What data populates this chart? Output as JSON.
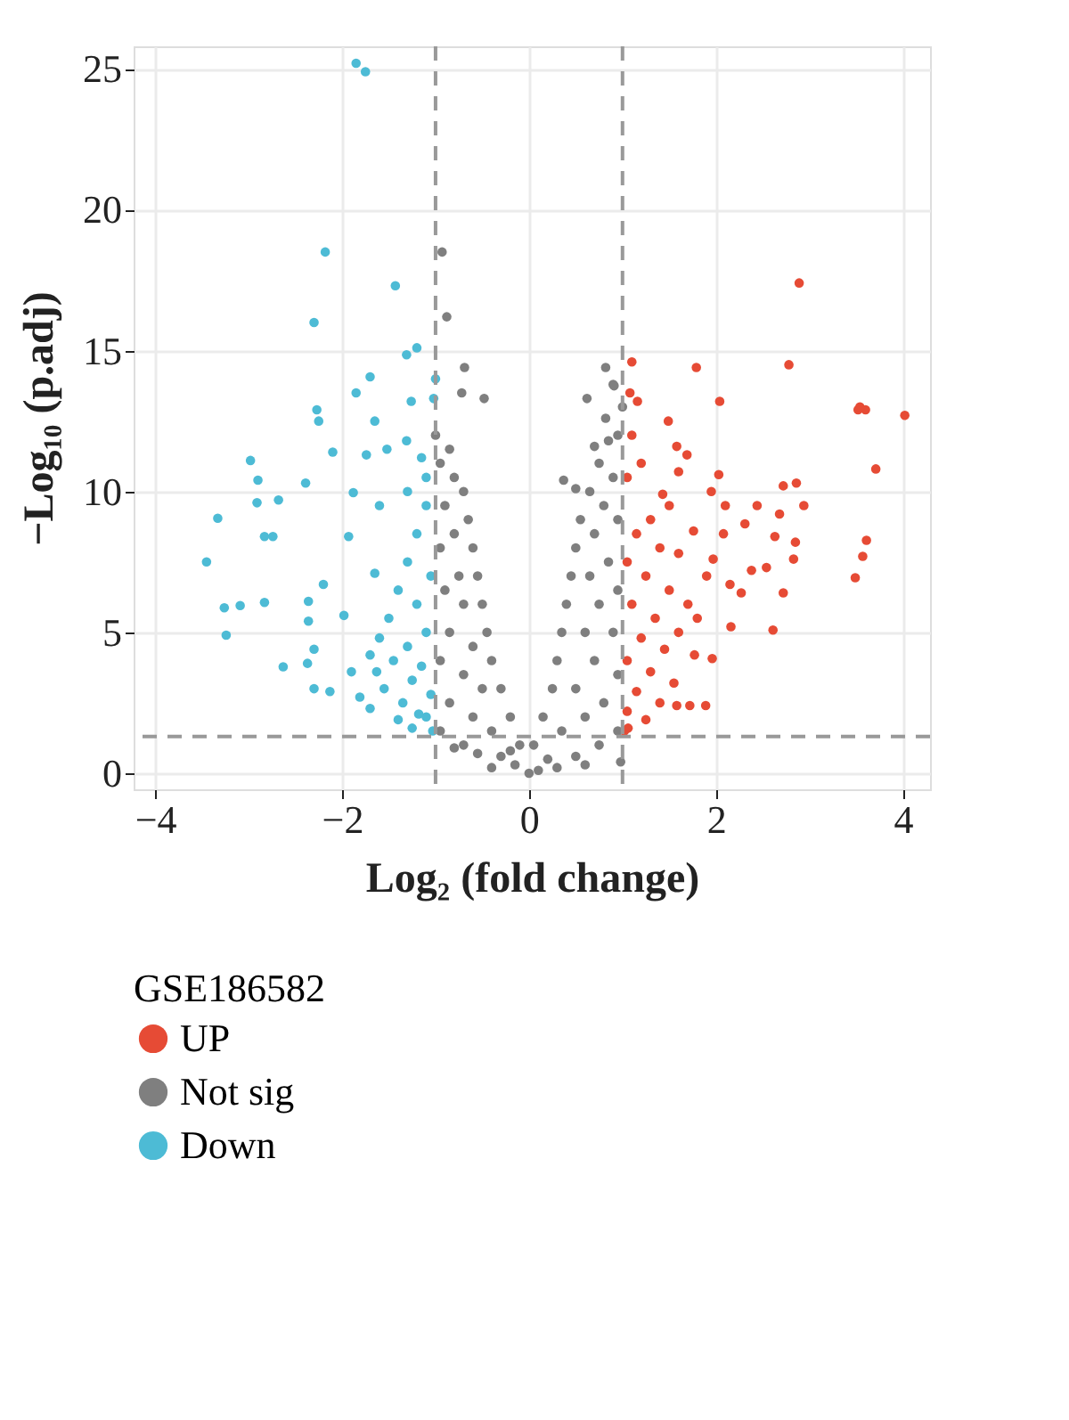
{
  "chart_data": {
    "type": "scatter",
    "xlabel": "Log₂ (fold change)",
    "ylabel": "−Log₁₀ (p.adj)",
    "legend_title": "GSE186582",
    "xlim": [
      -4.23,
      4.29
    ],
    "ylim": [
      -0.57,
      25.8
    ],
    "xticks": [
      -4,
      -2,
      0,
      2,
      4
    ],
    "yticks": [
      0,
      5,
      10,
      15,
      20,
      25
    ],
    "grid": true,
    "legend": "bottom",
    "marker": "circle",
    "ref_lines": [
      {
        "axis": "x",
        "value": -1,
        "color": "#999999",
        "line_style": "dashed"
      },
      {
        "axis": "x",
        "value": 1,
        "color": "#999999",
        "line_style": "dashed"
      },
      {
        "axis": "y",
        "value": 1.3,
        "color": "#999999",
        "line_style": "dashed"
      }
    ],
    "series": [
      {
        "name": "UP",
        "color": "#e64b35",
        "x": [
          2.89,
          1.1,
          1.79,
          2.78,
          1.08,
          1.16,
          2.04,
          3.6,
          3.52,
          3.54,
          4.02,
          1.49,
          1.58,
          1.69,
          3.71,
          2.03,
          1.6,
          2.72,
          2.86,
          2.94,
          2.44,
          2.68,
          1.95,
          2.1,
          1.43,
          1.76,
          2.08,
          2.31,
          2.63,
          2.85,
          3.61,
          3.57,
          3.49,
          2.83,
          2.54,
          2.38,
          1.97,
          2.15,
          2.27,
          2.72,
          2.61,
          2.16,
          1.96,
          1.77,
          1.58,
          1.72,
          1.89,
          1.06,
          1.1,
          1.2,
          1.05,
          1.3,
          1.15,
          1.4,
          1.05,
          1.25,
          1.5,
          1.1,
          1.35,
          1.6,
          1.2,
          1.45,
          1.05,
          1.3,
          1.55,
          1.15,
          1.4,
          1.05,
          1.25,
          1.02,
          1.7,
          1.8,
          1.6,
          1.9,
          1.5
        ],
        "values": [
          17.4,
          14.6,
          14.4,
          14.5,
          13.5,
          13.2,
          13.2,
          12.9,
          12.9,
          13.0,
          12.7,
          12.5,
          11.6,
          11.3,
          10.8,
          10.6,
          10.7,
          10.2,
          10.3,
          9.5,
          9.5,
          9.2,
          10.0,
          9.5,
          9.9,
          8.6,
          8.5,
          8.85,
          8.4,
          8.2,
          8.27,
          7.7,
          6.94,
          7.6,
          7.3,
          7.2,
          7.6,
          6.7,
          6.4,
          6.4,
          5.08,
          5.2,
          4.07,
          4.2,
          2.4,
          2.4,
          2.4,
          1.6,
          12,
          11,
          10.5,
          9,
          8.5,
          8,
          7.5,
          7,
          6.5,
          6,
          5.5,
          5,
          4.8,
          4.4,
          4,
          3.6,
          3.2,
          2.9,
          2.5,
          2.2,
          1.9,
          1.5,
          6,
          5.5,
          7.8,
          7,
          9.5
        ]
      },
      {
        "name": "Not sig",
        "color": "#7f7f7f",
        "x": [
          -0.93,
          -0.88,
          -0.69,
          -0.72,
          -0.48,
          0.82,
          0.91,
          0.62,
          0.9,
          0.82,
          0.7,
          0.37,
          0.5,
          -1,
          -0.95,
          -0.85,
          -0.8,
          -0.7,
          -0.9,
          -0.65,
          -0.8,
          -0.6,
          -0.95,
          -0.55,
          -0.75,
          -0.9,
          -0.5,
          -0.7,
          -0.45,
          -0.85,
          -0.6,
          -0.4,
          -0.95,
          -0.3,
          -0.7,
          -0.5,
          -0.85,
          -0.2,
          -0.6,
          -0.95,
          -0.4,
          -0.1,
          -0.7,
          -0.3,
          -0.55,
          -0.15,
          0,
          -0.4,
          0.1,
          0.3,
          -0.8,
          -0.2,
          1,
          0.95,
          0.85,
          0.75,
          0.9,
          0.65,
          0.8,
          0.55,
          0.95,
          0.7,
          0.5,
          0.85,
          0.45,
          0.65,
          0.95,
          0.4,
          0.75,
          0.35,
          0.6,
          0.9,
          0.3,
          0.7,
          0.95,
          0.25,
          0.5,
          0.8,
          0.15,
          0.6,
          0.95,
          0.35,
          0.05,
          0.75,
          0.5,
          0.2,
          0.6,
          0.98
        ],
        "values": [
          18.5,
          16.2,
          14.4,
          13.5,
          13.3,
          14.4,
          13.75,
          13.3,
          13.8,
          12.6,
          11.6,
          10.4,
          10.1,
          12,
          11,
          11.5,
          10.5,
          10,
          9.5,
          9,
          8.5,
          8,
          8,
          7,
          7,
          6.5,
          6,
          6,
          5,
          5,
          4.5,
          4,
          4,
          3,
          3.5,
          3,
          2.5,
          2,
          2,
          1.5,
          1.5,
          1,
          1,
          0.6,
          0.7,
          0.3,
          0,
          0.2,
          0.1,
          0.2,
          0.9,
          0.8,
          13,
          12,
          11.8,
          11,
          10.5,
          10,
          9.5,
          9,
          9,
          8.5,
          8,
          7.5,
          7,
          7,
          6.5,
          6,
          6,
          5,
          5,
          5,
          4,
          4,
          3.5,
          3,
          3,
          2.5,
          2,
          2,
          1.5,
          1.5,
          1,
          1,
          0.6,
          0.5,
          0.3,
          0.4
        ]
      },
      {
        "name": "Down",
        "color": "#4dbbd5",
        "x": [
          -1.85,
          -1.75,
          -2.18,
          -1.43,
          -2.3,
          -1.2,
          -1.31,
          -1.0,
          -1.7,
          -1.85,
          -1.26,
          -2.27,
          -2.25,
          -1.65,
          -1.31,
          -2.98,
          -2.1,
          -1.74,
          -1.52,
          -2.9,
          -2.39,
          -2.91,
          -2.68,
          -3.33,
          -1.88,
          -2.83,
          -2.74,
          -3.45,
          -1.93,
          -3.26,
          -3.09,
          -3.24,
          -2.83,
          -2.63,
          -2.2,
          -2.36,
          -2.36,
          -2.3,
          -2.37,
          -2.3,
          -2.13,
          -1.98,
          -1.65,
          -1.81,
          -1.63,
          -1.4,
          -1.18,
          -1.1,
          -1.2,
          -1.3,
          -1.05,
          -1.4,
          -1.2,
          -1.5,
          -1.1,
          -1.6,
          -1.3,
          -1.7,
          -1.45,
          -1.15,
          -1.9,
          -1.25,
          -1.55,
          -1.05,
          -1.35,
          -1.7,
          -1.1,
          -1.25,
          -1.03,
          -1.15,
          -1.1,
          -1.02,
          -1.3,
          -1.6
        ],
        "values": [
          25.2,
          24.9,
          18.5,
          17.3,
          16.0,
          15.1,
          14.85,
          14.0,
          14.07,
          13.5,
          13.2,
          12.9,
          12.5,
          12.5,
          11.8,
          11.1,
          11.4,
          11.3,
          11.5,
          10.4,
          10.3,
          9.6,
          9.7,
          9.05,
          9.96,
          8.4,
          8.4,
          7.5,
          8.4,
          5.87,
          5.95,
          4.9,
          6.06,
          3.78,
          6.7,
          6.1,
          5.4,
          4.4,
          3.9,
          3.0,
          2.9,
          5.6,
          7.1,
          2.7,
          3.6,
          1.9,
          2.1,
          9.5,
          8.5,
          7.5,
          7,
          6.5,
          6,
          5.5,
          5,
          4.8,
          4.5,
          4.2,
          4,
          3.8,
          3.6,
          3.3,
          3,
          2.8,
          2.5,
          2.3,
          2,
          1.6,
          1.5,
          11.2,
          10.5,
          13.3,
          10.0,
          9.5
        ]
      }
    ]
  }
}
